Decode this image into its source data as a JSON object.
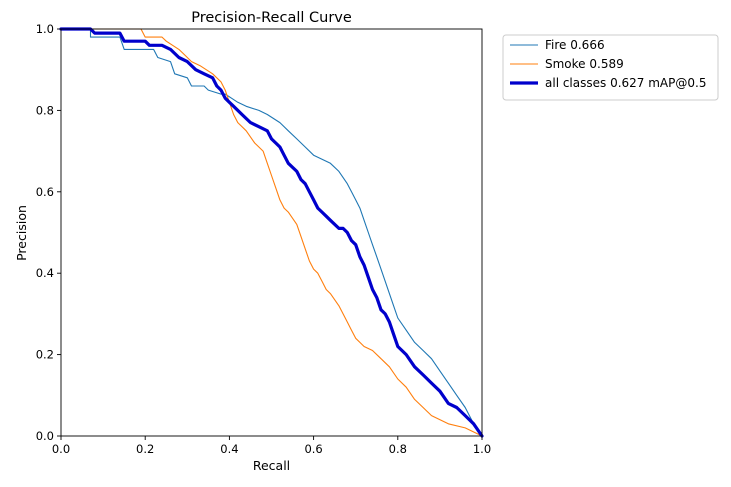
{
  "chart_data": {
    "type": "line",
    "title": "Precision-Recall Curve",
    "xlabel": "Recall",
    "ylabel": "Precision",
    "xlim": [
      0,
      1
    ],
    "ylim": [
      0,
      1
    ],
    "xticks": [
      "0.0",
      "0.2",
      "0.4",
      "0.6",
      "0.8",
      "1.0"
    ],
    "yticks": [
      "0.0",
      "0.2",
      "0.4",
      "0.6",
      "0.8",
      "1.0"
    ],
    "grid": false,
    "legend_position": "outside top-right",
    "series": [
      {
        "name": "Fire 0.666",
        "color": "#1f77b4",
        "width": "thin",
        "x": [
          0.0,
          0.07,
          0.07,
          0.14,
          0.15,
          0.22,
          0.23,
          0.26,
          0.27,
          0.3,
          0.31,
          0.34,
          0.35,
          0.38,
          0.39,
          0.42,
          0.44,
          0.47,
          0.49,
          0.52,
          0.54,
          0.56,
          0.58,
          0.6,
          0.62,
          0.64,
          0.66,
          0.68,
          0.69,
          0.7,
          0.71,
          0.72,
          0.73,
          0.74,
          0.75,
          0.76,
          0.77,
          0.78,
          0.79,
          0.8,
          0.82,
          0.84,
          0.86,
          0.88,
          0.9,
          0.92,
          0.94,
          0.96,
          0.98,
          1.0
        ],
        "y": [
          1.0,
          1.0,
          0.98,
          0.98,
          0.95,
          0.95,
          0.93,
          0.92,
          0.89,
          0.88,
          0.86,
          0.86,
          0.85,
          0.84,
          0.84,
          0.82,
          0.81,
          0.8,
          0.79,
          0.77,
          0.75,
          0.73,
          0.71,
          0.69,
          0.68,
          0.67,
          0.65,
          0.62,
          0.6,
          0.58,
          0.56,
          0.53,
          0.5,
          0.47,
          0.44,
          0.41,
          0.38,
          0.35,
          0.32,
          0.29,
          0.26,
          0.23,
          0.21,
          0.19,
          0.16,
          0.13,
          0.1,
          0.07,
          0.03,
          0.0
        ]
      },
      {
        "name": "Smoke 0.589",
        "color": "#ff7f0e",
        "width": "thin",
        "x": [
          0.0,
          0.19,
          0.2,
          0.24,
          0.25,
          0.28,
          0.29,
          0.31,
          0.33,
          0.36,
          0.38,
          0.39,
          0.4,
          0.41,
          0.42,
          0.44,
          0.46,
          0.48,
          0.49,
          0.5,
          0.51,
          0.52,
          0.53,
          0.54,
          0.56,
          0.57,
          0.58,
          0.59,
          0.6,
          0.61,
          0.62,
          0.63,
          0.64,
          0.66,
          0.67,
          0.68,
          0.69,
          0.7,
          0.71,
          0.72,
          0.74,
          0.76,
          0.78,
          0.8,
          0.82,
          0.84,
          0.86,
          0.88,
          0.92,
          0.96,
          1.0
        ],
        "y": [
          1.0,
          1.0,
          0.98,
          0.98,
          0.97,
          0.95,
          0.94,
          0.92,
          0.91,
          0.89,
          0.87,
          0.85,
          0.82,
          0.79,
          0.77,
          0.75,
          0.72,
          0.7,
          0.67,
          0.64,
          0.61,
          0.58,
          0.56,
          0.55,
          0.52,
          0.49,
          0.46,
          0.43,
          0.41,
          0.4,
          0.38,
          0.36,
          0.35,
          0.32,
          0.3,
          0.28,
          0.26,
          0.24,
          0.23,
          0.22,
          0.21,
          0.19,
          0.17,
          0.14,
          0.12,
          0.09,
          0.07,
          0.05,
          0.03,
          0.02,
          0.0
        ]
      },
      {
        "name": "all classes 0.627 mAP@0.5",
        "color": "#0000cc",
        "width": "thick",
        "x": [
          0.0,
          0.07,
          0.08,
          0.14,
          0.15,
          0.2,
          0.21,
          0.24,
          0.26,
          0.28,
          0.3,
          0.32,
          0.34,
          0.36,
          0.37,
          0.38,
          0.39,
          0.4,
          0.41,
          0.43,
          0.45,
          0.47,
          0.49,
          0.5,
          0.52,
          0.53,
          0.54,
          0.56,
          0.57,
          0.58,
          0.59,
          0.6,
          0.61,
          0.62,
          0.63,
          0.64,
          0.66,
          0.67,
          0.68,
          0.69,
          0.7,
          0.71,
          0.72,
          0.73,
          0.74,
          0.75,
          0.76,
          0.77,
          0.78,
          0.79,
          0.8,
          0.82,
          0.84,
          0.86,
          0.88,
          0.9,
          0.92,
          0.94,
          0.96,
          0.98,
          1.0
        ],
        "y": [
          1.0,
          1.0,
          0.99,
          0.99,
          0.97,
          0.97,
          0.96,
          0.96,
          0.95,
          0.93,
          0.92,
          0.9,
          0.89,
          0.88,
          0.86,
          0.85,
          0.83,
          0.82,
          0.81,
          0.79,
          0.77,
          0.76,
          0.75,
          0.73,
          0.71,
          0.69,
          0.67,
          0.65,
          0.63,
          0.62,
          0.6,
          0.58,
          0.56,
          0.55,
          0.54,
          0.53,
          0.51,
          0.51,
          0.5,
          0.48,
          0.47,
          0.44,
          0.42,
          0.39,
          0.36,
          0.34,
          0.31,
          0.3,
          0.28,
          0.25,
          0.22,
          0.2,
          0.17,
          0.15,
          0.13,
          0.11,
          0.08,
          0.07,
          0.05,
          0.03,
          0.0
        ]
      }
    ]
  }
}
